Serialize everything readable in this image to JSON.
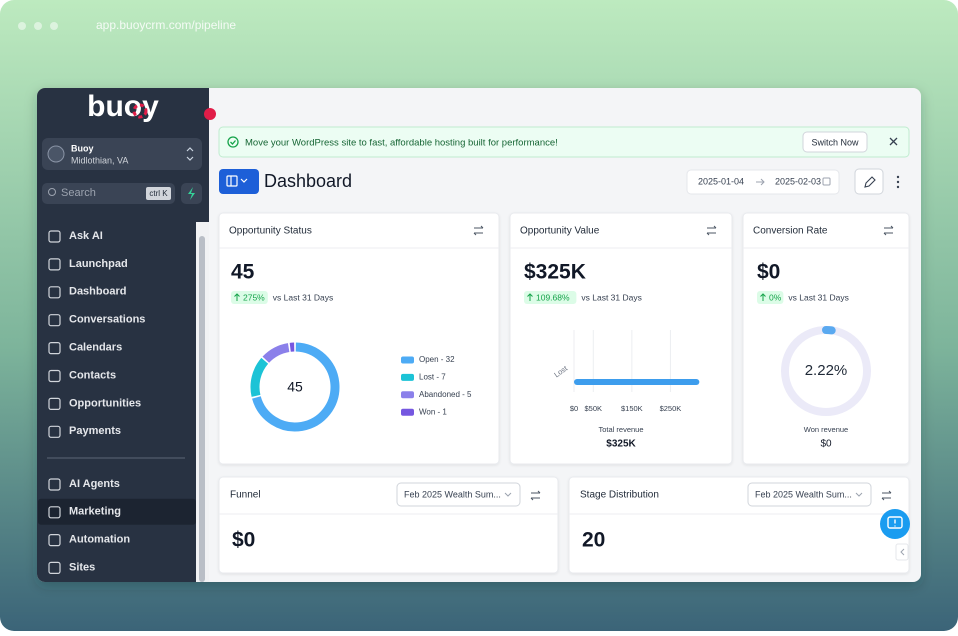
{
  "browser": {
    "url": "app.buoycrm.com/pipeline"
  },
  "sidebar": {
    "logo": "buoy",
    "account": {
      "name": "Buoy",
      "location": "Midlothian, VA"
    },
    "search": {
      "placeholder": "Search",
      "shortcut": "ctrl K"
    },
    "nav": [
      "Ask AI",
      "Launchpad",
      "Dashboard",
      "Conversations",
      "Calendars",
      "Contacts",
      "Opportunities",
      "Payments"
    ],
    "nav_secondary": [
      "AI Agents",
      "Marketing",
      "Automation",
      "Sites"
    ],
    "active_secondary": 1
  },
  "banner": {
    "message": "Move your WordPress site to fast, affordable hosting built for performance!",
    "action": "Switch Now"
  },
  "header": {
    "title": "Dashboard",
    "date_from": "2025-01-04",
    "date_to": "2025-02-03"
  },
  "cards": {
    "opportunity_status": {
      "title": "Opportunity Status",
      "value": "45",
      "change": "275%",
      "comparison": "vs Last 31 Days",
      "chart": {
        "type": "donut",
        "total": "45",
        "segments": [
          {
            "label": "Open - 32",
            "value": 32,
            "color": "#4dabf5"
          },
          {
            "label": "Lost - 7",
            "value": 7,
            "color": "#1cc3d6"
          },
          {
            "label": "Abandoned - 5",
            "value": 5,
            "color": "#8b80ea"
          },
          {
            "label": "Won - 1",
            "value": 1,
            "color": "#7557e0"
          }
        ]
      }
    },
    "opportunity_value": {
      "title": "Opportunity Value",
      "value": "$325K",
      "change": "109.68%",
      "comparison": "vs Last 31 Days",
      "chart": {
        "type": "bar",
        "categories": [
          "Lost"
        ],
        "values": [
          325000
        ],
        "color": "#3d9ded",
        "xlim": [
          0,
          350000
        ],
        "xticks": [
          {
            "value": 0,
            "label": "$0"
          },
          {
            "value": 50000,
            "label": "$50K"
          },
          {
            "value": 150000,
            "label": "$150K"
          },
          {
            "value": 250000,
            "label": "$250K"
          }
        ],
        "grid": true
      },
      "footer_label": "Total revenue",
      "footer_value": "$325K"
    },
    "conversion_rate": {
      "title": "Conversion Rate",
      "value": "$0",
      "change": "0%",
      "comparison": "vs Last 31 Days",
      "gauge": {
        "value": 2.22,
        "label": "2.22%",
        "max": 100,
        "color": "#5aa9f0",
        "track": "#ebeaf8"
      },
      "footer_label": "Won revenue",
      "footer_value": "$0"
    },
    "funnel": {
      "title": "Funnel",
      "filter": "Feb 2025 Wealth Sum...",
      "value": "$0"
    },
    "stage_distribution": {
      "title": "Stage Distribution",
      "filter": "Feb 2025 Wealth Sum...",
      "value": "20"
    }
  }
}
